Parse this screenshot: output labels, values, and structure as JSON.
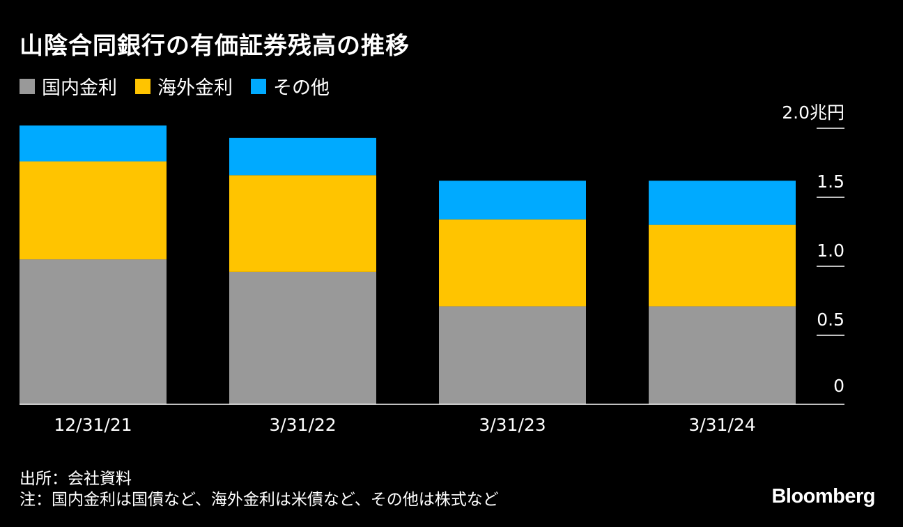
{
  "title": "山陰合同銀行の有価証券残高の推移",
  "legend": [
    {
      "label": "国内金利",
      "color": "#999999"
    },
    {
      "label": "海外金利",
      "color": "#FFC400"
    },
    {
      "label": "その他",
      "color": "#00AAFF"
    }
  ],
  "chart_data": {
    "type": "bar",
    "stacked": true,
    "categories": [
      "12/31/21",
      "3/31/22",
      "3/31/23",
      "3/31/24"
    ],
    "series": [
      {
        "name": "国内金利",
        "color": "#999999",
        "values": [
          1.05,
          0.96,
          0.71,
          0.71
        ]
      },
      {
        "name": "海外金利",
        "color": "#FFC400",
        "values": [
          0.71,
          0.7,
          0.63,
          0.59
        ]
      },
      {
        "name": "その他",
        "color": "#00AAFF",
        "values": [
          0.26,
          0.27,
          0.28,
          0.32
        ]
      }
    ],
    "ylim": [
      0,
      2.0
    ],
    "yticks": [
      {
        "value": 0,
        "label": "0"
      },
      {
        "value": 0.5,
        "label": "0.5"
      },
      {
        "value": 1.0,
        "label": "1.0"
      },
      {
        "value": 1.5,
        "label": "1.5"
      },
      {
        "value": 2.0,
        "label": "2.0兆円"
      }
    ],
    "y_axis_position": "right",
    "grid": false,
    "legend_position": "top-left"
  },
  "footer": {
    "source": "出所：会社資料",
    "note": "注：国内金利は国債など、海外金利は米債など、その他は株式など"
  },
  "brand": "Bloomberg"
}
